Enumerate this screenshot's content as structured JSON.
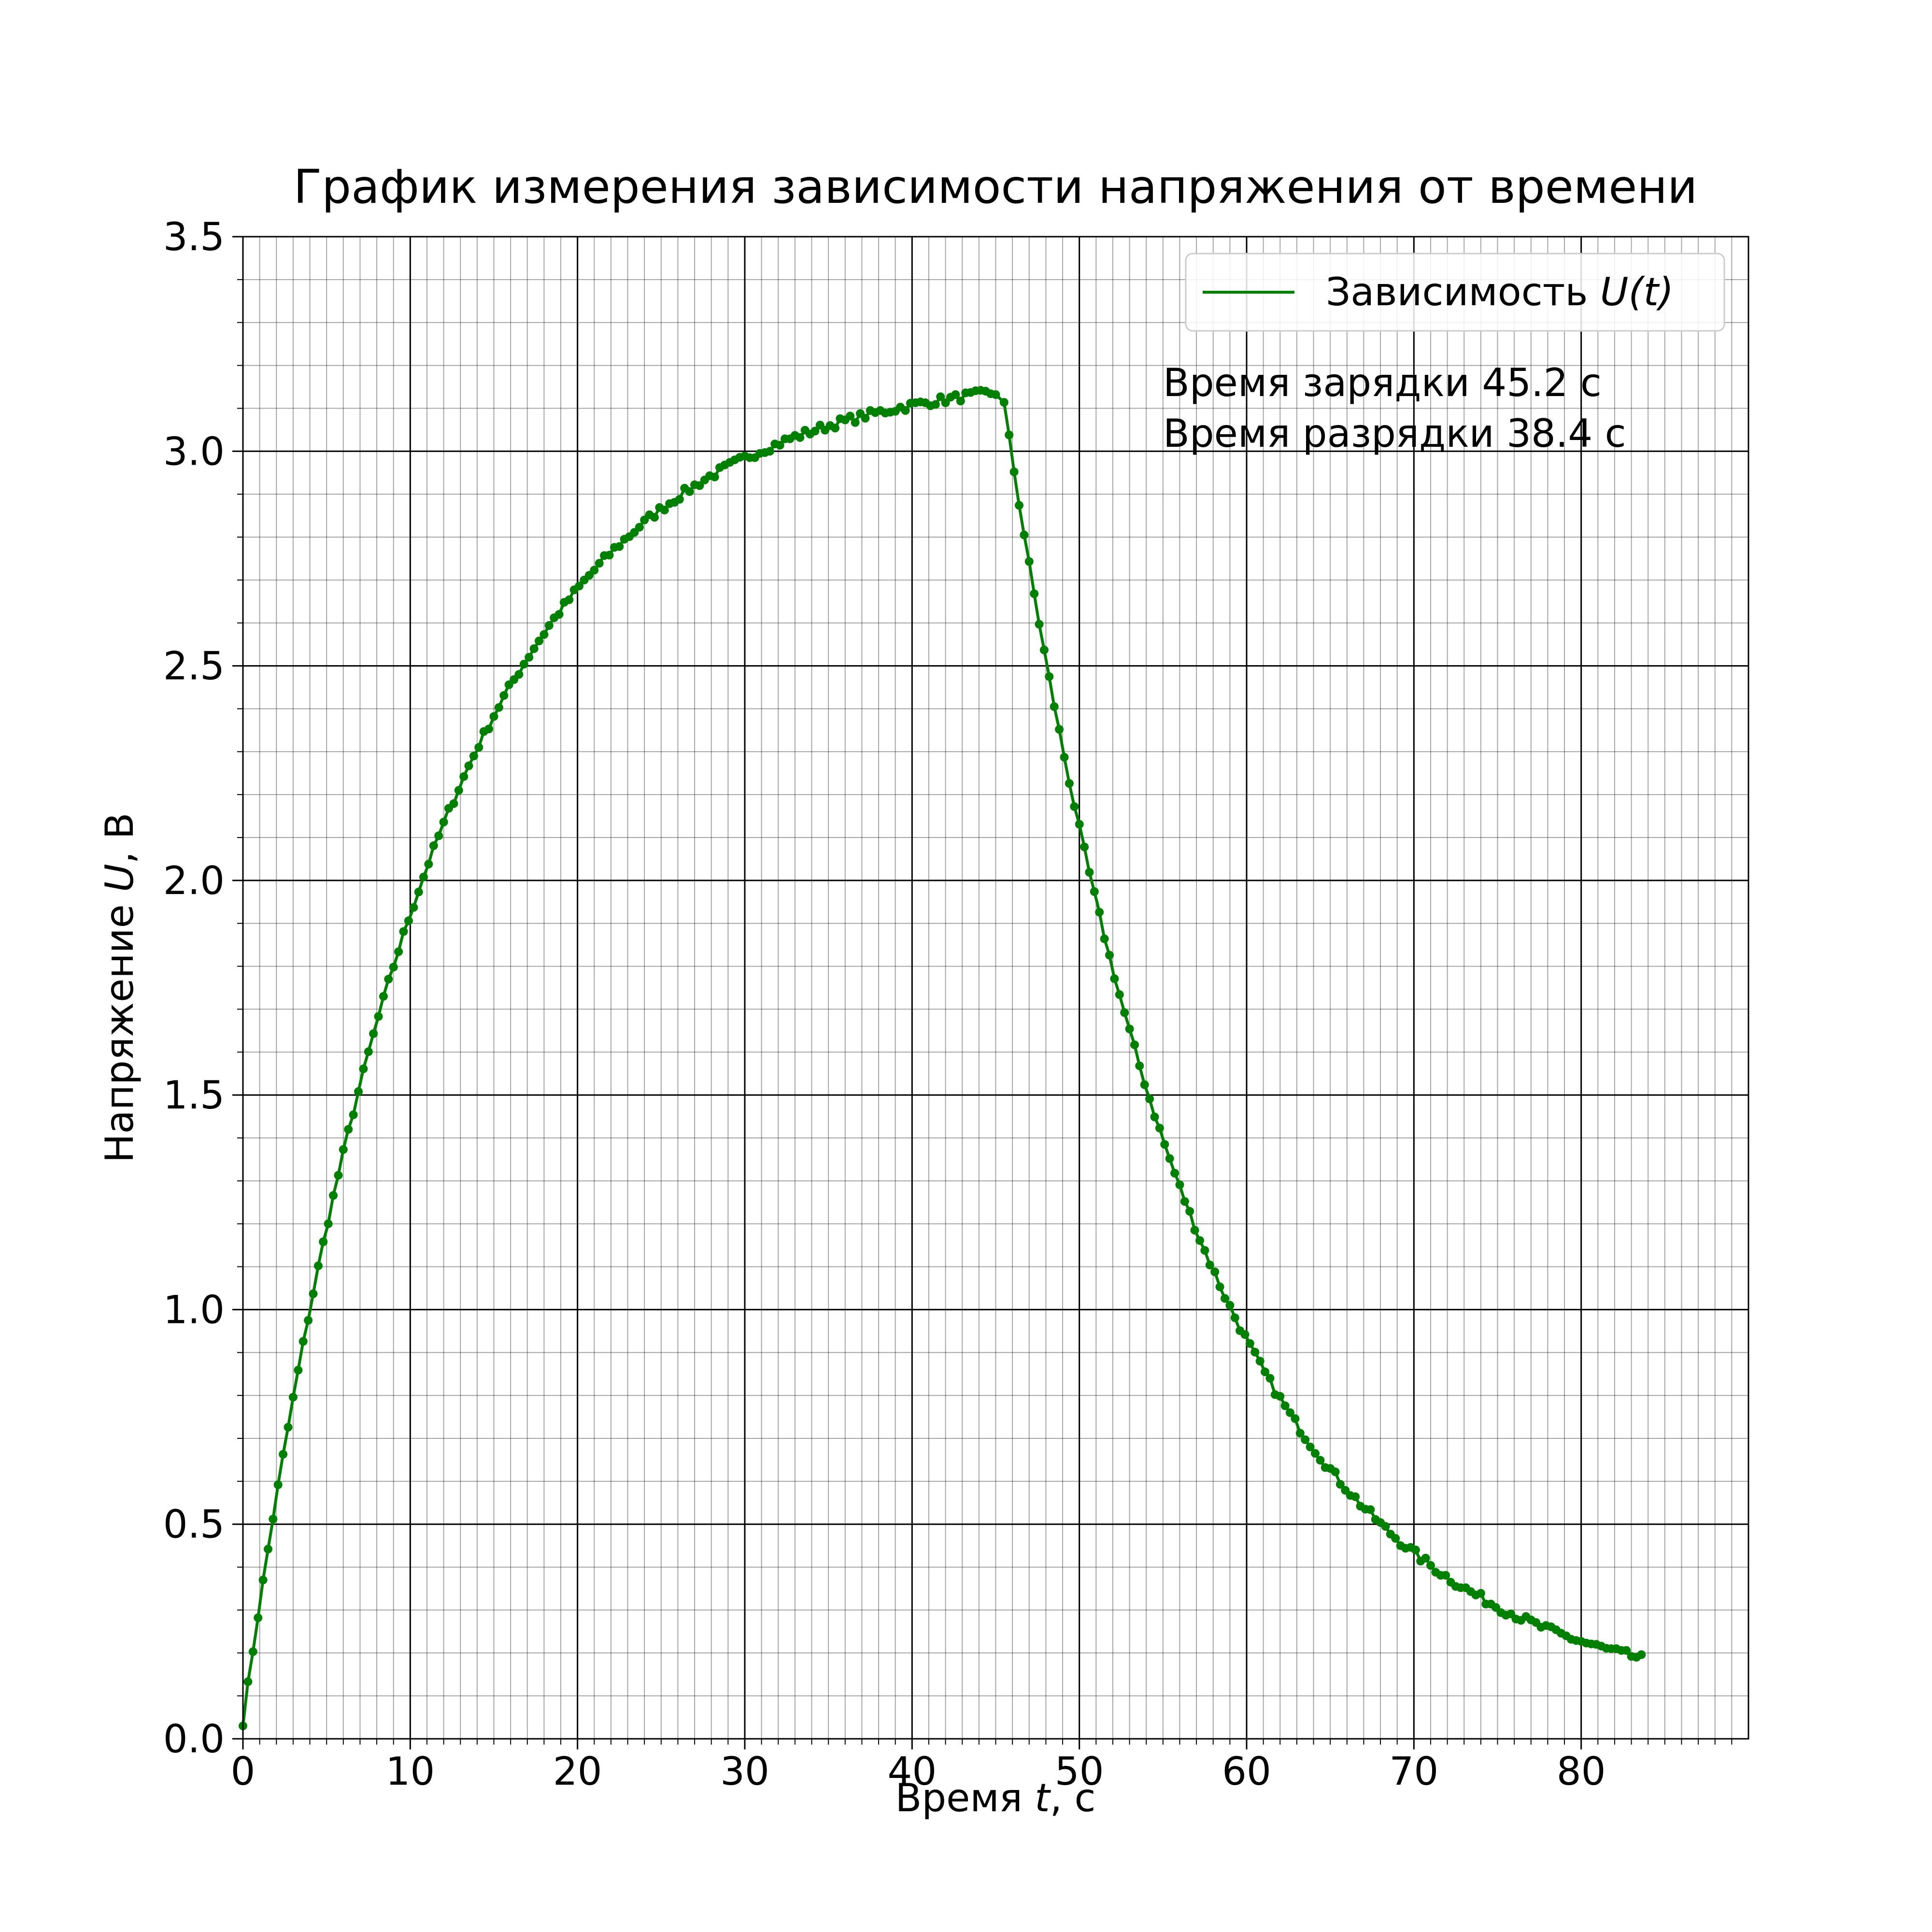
{
  "chart_data": {
    "type": "line",
    "title": "График измерения зависимости напряжения от времени",
    "xlabel": {
      "prefix": "Время ",
      "var": "t",
      "suffix": ", с"
    },
    "ylabel": {
      "prefix": "Напряжение ",
      "var": "U",
      "suffix": ", В"
    },
    "xlim": [
      0,
      90
    ],
    "ylim": [
      0,
      3.5
    ],
    "xticks": [
      0,
      10,
      20,
      30,
      40,
      50,
      60,
      70,
      80
    ],
    "xtick_labels": [
      "0",
      "10",
      "20",
      "30",
      "40",
      "50",
      "60",
      "70",
      "80"
    ],
    "yticks": [
      0,
      0.5,
      1,
      1.5,
      2,
      2.5,
      3,
      3.5
    ],
    "ytick_labels": [
      "0.0",
      "0.5",
      "1.0",
      "1.5",
      "2.0",
      "2.5",
      "3.0",
      "3.5"
    ],
    "grid": {
      "major": true,
      "minor": true,
      "minor_x_step": 1,
      "minor_y_step": 0.1
    },
    "legend": {
      "placement": "top-right",
      "entries": [
        {
          "prefix": "Зависимость ",
          "math": "U(t)"
        }
      ]
    },
    "annotations": [
      "Время зарядки 45.2 с",
      "Время разрядки 38.4 с"
    ],
    "series": [
      {
        "name": "Зависимость U(t)",
        "color": "#008000",
        "marker": "circle",
        "points": []
      }
    ],
    "model": {
      "charge": {
        "t_start": 0,
        "t_end": 45.2,
        "U0": 0.04,
        "Umax": 3.19,
        "tau": 11.0
      },
      "discharge": {
        "t_start": 45.2,
        "t_end": 83.6,
        "U_start": 3.19,
        "U_floor": 0.08,
        "tau": 11.4
      },
      "step": 0.3
    }
  }
}
